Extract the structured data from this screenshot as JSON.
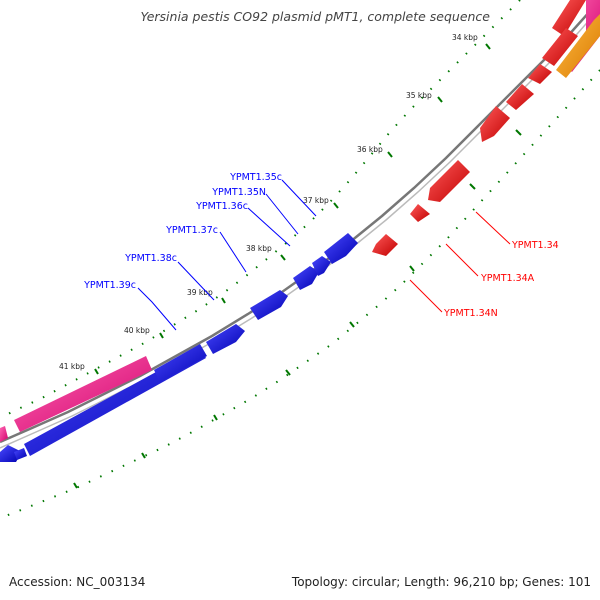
{
  "title": "Yersinia pestis CO92 plasmid pMT1, complete sequence",
  "footer": {
    "accession": "Accession: NC_003134",
    "summary": "Topology: circular; Length: 96,210 bp; Genes: 101"
  },
  "colors": {
    "forward_genes": "#ff0000",
    "reverse_genes": "#0000ff",
    "feature_magenta": "#ff1a8c",
    "feature_orange": "#ff9900",
    "backbone": "#808080",
    "ticks": "#007700"
  },
  "ticks": [
    "34 kbp",
    "35 kbp",
    "36 kbp",
    "37 kbp",
    "38 kbp",
    "39 kbp",
    "40 kbp",
    "41 kbp"
  ],
  "labels": {
    "reverse": [
      "YPMT1.35c",
      "YPMT1.35N",
      "YPMT1.36c",
      "YPMT1.37c",
      "YPMT1.38c",
      "YPMT1.39c"
    ],
    "forward": [
      "YPMT1.34",
      "YPMT1.34A",
      "YPMT1.34N"
    ]
  }
}
